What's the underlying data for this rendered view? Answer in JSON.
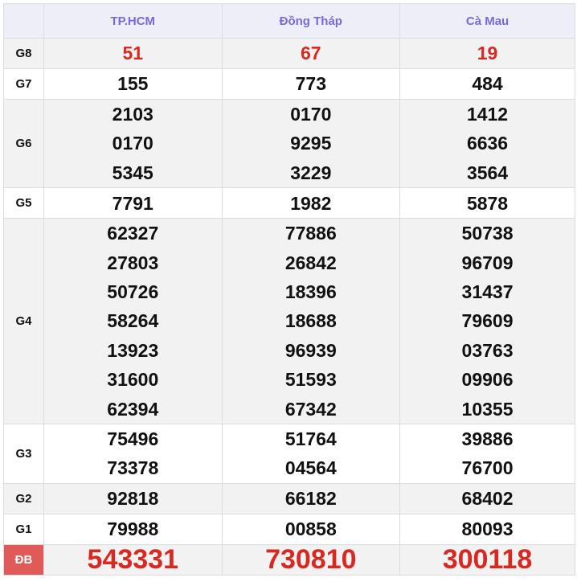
{
  "header": {
    "provinces": [
      "TP.HCM",
      "Đồng Tháp",
      "Cà Mau"
    ]
  },
  "colors": {
    "header_text": "#7b68d8",
    "prize_red": "#d8281f",
    "special_label_bg": "#e05a5a"
  },
  "rows": [
    {
      "label": "G8",
      "values": [
        [
          "51"
        ],
        [
          "67"
        ],
        [
          "19"
        ]
      ]
    },
    {
      "label": "G7",
      "values": [
        [
          "155"
        ],
        [
          "773"
        ],
        [
          "484"
        ]
      ]
    },
    {
      "label": "G6",
      "values": [
        [
          "2103",
          "0170",
          "5345"
        ],
        [
          "0170",
          "9295",
          "3229"
        ],
        [
          "1412",
          "6636",
          "3564"
        ]
      ]
    },
    {
      "label": "G5",
      "values": [
        [
          "7791"
        ],
        [
          "1982"
        ],
        [
          "5878"
        ]
      ]
    },
    {
      "label": "G4",
      "values": [
        [
          "62327",
          "27803",
          "50726",
          "58264",
          "13923",
          "31600",
          "62394"
        ],
        [
          "77886",
          "26842",
          "18396",
          "18688",
          "96939",
          "51593",
          "67342"
        ],
        [
          "50738",
          "96709",
          "31437",
          "79609",
          "03763",
          "09906",
          "10355"
        ]
      ]
    },
    {
      "label": "G3",
      "values": [
        [
          "75496",
          "73378"
        ],
        [
          "51764",
          "04564"
        ],
        [
          "39886",
          "76700"
        ]
      ]
    },
    {
      "label": "G2",
      "values": [
        [
          "92818"
        ],
        [
          "66182"
        ],
        [
          "68402"
        ]
      ]
    },
    {
      "label": "G1",
      "values": [
        [
          "79988"
        ],
        [
          "00858"
        ],
        [
          "80093"
        ]
      ]
    },
    {
      "label": "ĐB",
      "values": [
        [
          "543331"
        ],
        [
          "730810"
        ],
        [
          "300118"
        ]
      ]
    }
  ]
}
